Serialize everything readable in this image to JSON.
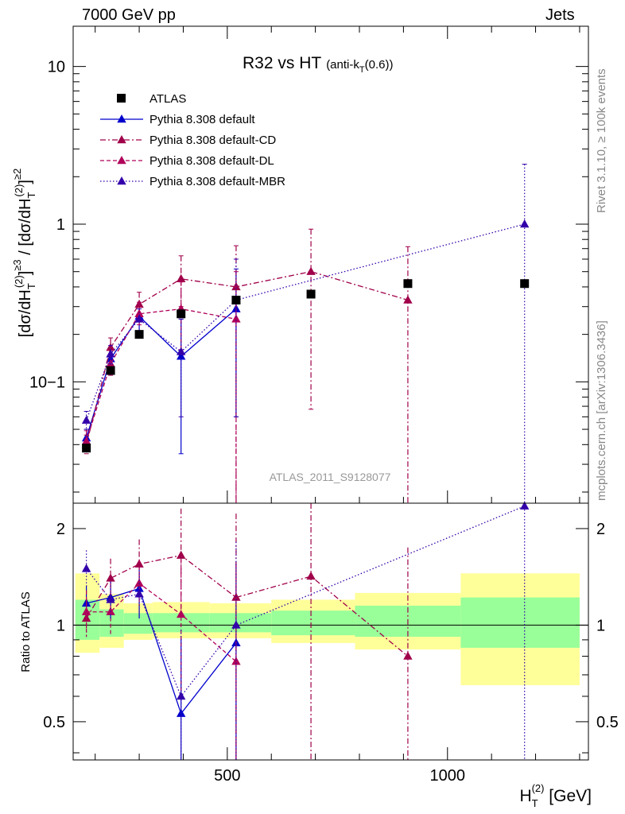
{
  "header": {
    "left": "7000 GeV pp",
    "right": "Jets",
    "rivet": "Rivet 3.1.10, ≥ 100k events",
    "mcplots": "mcplots.cern.ch [arXiv:1306.3436]"
  },
  "colors": {
    "atlas": "#000000",
    "default": "#0000cc",
    "cd": "#a0004a",
    "dl": "#b0005a",
    "mbr": "#3300aa",
    "band_inner": "#99ff99",
    "band_outer": "#ffff99"
  },
  "chart_data": {
    "type": "line",
    "title": "R32 vs HT",
    "title_sub": "(anti-k",
    "title_sub_index": "T",
    "title_sub_tail": "(0.6))",
    "analysis_label": "ATLAS_2011_S9128077",
    "ylabel": "[dσ/dH_T^(2)]^≥3 / [dσ/dH_T^(2)]^≥2",
    "ylabel_ratio": "Ratio to ATLAS",
    "xlabel": "H_T^(2) [GeV]",
    "xlabel_main": "H",
    "xlabel_sub": "T",
    "xlabel_sup": "(2)",
    "xlabel_unit": " [GeV]",
    "xlim": [
      150,
      1320
    ],
    "ylim": [
      0.017,
      18
    ],
    "ratio_ylim": [
      0.38,
      2.4
    ],
    "x_ticks": [
      "500",
      "1000"
    ],
    "y_ticks": [
      "10",
      "1",
      "10−1"
    ],
    "ratio_ticks": [
      "2",
      "1",
      "0.5"
    ],
    "legend": [
      "ATLAS",
      "Pythia 8.308 default",
      "Pythia 8.308 default-CD",
      "Pythia 8.308 default-DL",
      "Pythia 8.308 default-MBR"
    ],
    "bins": [
      {
        "lo": 155,
        "hi": 210,
        "x": 180
      },
      {
        "lo": 210,
        "hi": 265,
        "x": 235
      },
      {
        "lo": 265,
        "hi": 330,
        "x": 300
      },
      {
        "lo": 330,
        "hi": 460,
        "x": 395
      },
      {
        "lo": 460,
        "hi": 600,
        "x": 520
      },
      {
        "lo": 600,
        "hi": 790,
        "x": 690
      },
      {
        "lo": 790,
        "hi": 1030,
        "x": 910
      },
      {
        "lo": 1030,
        "hi": 1300,
        "x": 1175
      }
    ],
    "atlas": [
      0.038,
      0.118,
      0.2,
      0.27,
      0.33,
      0.36,
      0.42,
      0.42
    ],
    "band_inner": [
      [
        0.9,
        1.2
      ],
      [
        0.92,
        1.12
      ],
      [
        0.94,
        1.09
      ],
      [
        0.95,
        1.09
      ],
      [
        0.95,
        1.09
      ],
      [
        0.93,
        1.11
      ],
      [
        0.92,
        1.15
      ],
      [
        0.85,
        1.22
      ]
    ],
    "band_outer": [
      [
        0.82,
        1.45
      ],
      [
        0.85,
        1.25
      ],
      [
        0.9,
        1.17
      ],
      [
        0.91,
        1.18
      ],
      [
        0.91,
        1.17
      ],
      [
        0.88,
        1.2
      ],
      [
        0.84,
        1.26
      ],
      [
        0.65,
        1.45
      ]
    ],
    "series": [
      {
        "key": "default",
        "name": "Pythia 8.308 default",
        "dash": "none",
        "x": [
          180,
          235,
          300,
          395,
          520
        ],
        "values": [
          0.044,
          0.14,
          0.26,
          0.145,
          0.29
        ],
        "err_lo": [
          0.039,
          0.12,
          0.21,
          0.035,
          0.06
        ],
        "err_hi": [
          0.05,
          0.16,
          0.31,
          0.25,
          0.52
        ],
        "ratio": [
          1.17,
          1.22,
          1.3,
          0.53,
          0.88
        ]
      },
      {
        "key": "cd",
        "name": "Pythia 8.308 default-CD",
        "dash": "7,3,2,3",
        "x": [
          180,
          235,
          300,
          395,
          520,
          690,
          910
        ],
        "values": [
          0.04,
          0.165,
          0.31,
          0.45,
          0.4,
          0.5,
          0.33
        ],
        "err_lo": [
          0.035,
          0.145,
          0.26,
          0.3,
          0.0001,
          0.067,
          0.0001
        ],
        "err_hi": [
          0.046,
          0.19,
          0.37,
          0.63,
          0.73,
          0.93,
          0.72
        ],
        "ratio": [
          1.05,
          1.4,
          1.55,
          1.65,
          1.22,
          1.42,
          0.8
        ]
      },
      {
        "key": "dl",
        "name": "Pythia 8.308 default-DL",
        "dash": "5,3",
        "x": [
          180,
          235,
          300,
          395,
          520
        ],
        "values": [
          0.042,
          0.13,
          0.27,
          0.29,
          0.25
        ],
        "err_lo": [
          0.036,
          0.11,
          0.23,
          0.16,
          0.0001
        ],
        "err_hi": [
          0.049,
          0.15,
          0.32,
          0.43,
          0.5
        ],
        "ratio": [
          1.1,
          1.1,
          1.35,
          1.08,
          0.77
        ]
      },
      {
        "key": "mbr",
        "name": "Pythia 8.308 default-MBR",
        "dash": "1.5,2.5",
        "x": [
          180,
          235,
          300,
          395,
          520,
          1175
        ],
        "values": [
          0.057,
          0.15,
          0.25,
          0.155,
          0.33,
          1.0
        ],
        "err_lo": [
          0.05,
          0.13,
          0.21,
          0.06,
          0.06,
          0.0001
        ],
        "err_hi": [
          0.065,
          0.17,
          0.29,
          0.25,
          0.6,
          2.4
        ],
        "ratio": [
          1.5,
          1.2,
          1.25,
          0.6,
          1.0,
          2.35
        ]
      }
    ]
  }
}
